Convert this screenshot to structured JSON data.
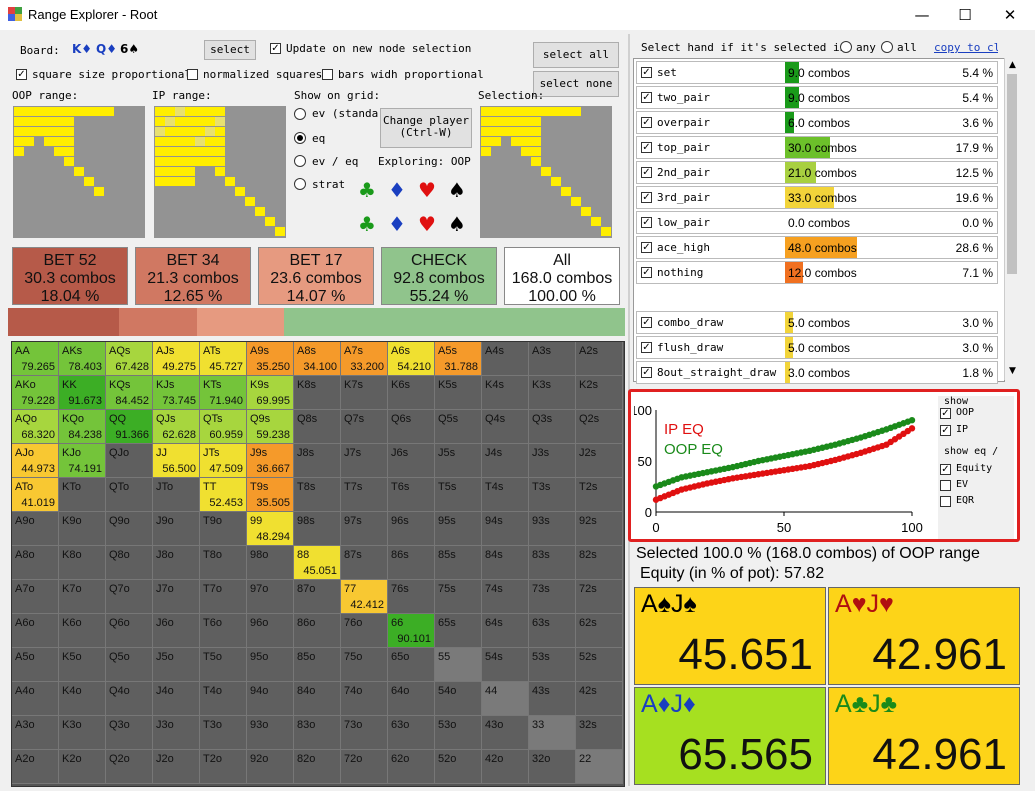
{
  "window": {
    "title": "Range Explorer  - Root",
    "minimize": "—",
    "maximize": "☐",
    "close": "✕"
  },
  "board": {
    "label": "Board:",
    "c1": "K♦",
    "c2": "Q♦",
    "c3": "6♠",
    "select_button": "select"
  },
  "options": {
    "update_label": "Update on new node selection",
    "square_size_label": "square size proportional",
    "normalized_label": "normalized squares",
    "bars_label": "bars widh proportional",
    "select_all": "select all",
    "select_none": "select none"
  },
  "thumbs": {
    "oop": "OOP range:",
    "ip": "IP range:",
    "selection": "Selection:"
  },
  "show_on_grid": {
    "label": "Show on grid:",
    "options": [
      "ev (standar",
      "eq",
      "ev / eq",
      "strat"
    ],
    "selected": 1
  },
  "change_player": {
    "line1": "Change player",
    "line2": "(Ctrl-W)"
  },
  "exploring": "Exploring: OOP",
  "suits": {
    "club": "♣",
    "diamond": "♦",
    "heart": "♥",
    "spade": "♠"
  },
  "actions": [
    {
      "name": "BET 52",
      "combos": "30.3 combos",
      "pct": "18.04 %",
      "color": "#b65a49"
    },
    {
      "name": "BET 34",
      "combos": "21.3 combos",
      "pct": "12.65 %",
      "color": "#d07862"
    },
    {
      "name": "BET 17",
      "combos": "23.6 combos",
      "pct": "14.07 %",
      "color": "#e69a80"
    },
    {
      "name": "CHECK",
      "combos": "92.8 combos",
      "pct": "55.24 %",
      "color": "#90c48c"
    },
    {
      "name": "All",
      "combos": "168.0 combos",
      "pct": "100.00 %",
      "color": "#ffffff"
    }
  ],
  "strategy_bar": [
    {
      "share": 0.1804,
      "color": "#b65a49"
    },
    {
      "share": 0.1265,
      "color": "#d07862"
    },
    {
      "share": 0.1407,
      "color": "#e69a80"
    },
    {
      "share": 0.5524,
      "color": "#90c48c"
    }
  ],
  "grid": [
    [
      {
        "n": "AA",
        "v": "79.265"
      },
      {
        "n": "AKs",
        "v": "78.403"
      },
      {
        "n": "AQs",
        "v": "67.428"
      },
      {
        "n": "AJs",
        "v": "49.275"
      },
      {
        "n": "ATs",
        "v": "45.727"
      },
      {
        "n": "A9s",
        "v": "35.250"
      },
      {
        "n": "A8s",
        "v": "34.100"
      },
      {
        "n": "A7s",
        "v": "33.200"
      },
      {
        "n": "A6s",
        "v": "54.210"
      },
      {
        "n": "A5s",
        "v": "31.788"
      },
      {
        "n": "A4s",
        "v": ""
      },
      {
        "n": "A3s",
        "v": ""
      },
      {
        "n": "A2s",
        "v": ""
      }
    ],
    [
      {
        "n": "AKo",
        "v": "79.228"
      },
      {
        "n": "KK",
        "v": "91.673"
      },
      {
        "n": "KQs",
        "v": "84.452"
      },
      {
        "n": "KJs",
        "v": "73.745"
      },
      {
        "n": "KTs",
        "v": "71.940"
      },
      {
        "n": "K9s",
        "v": "69.995"
      },
      {
        "n": "K8s",
        "v": ""
      },
      {
        "n": "K7s",
        "v": ""
      },
      {
        "n": "K6s",
        "v": ""
      },
      {
        "n": "K5s",
        "v": ""
      },
      {
        "n": "K4s",
        "v": ""
      },
      {
        "n": "K3s",
        "v": ""
      },
      {
        "n": "K2s",
        "v": ""
      }
    ],
    [
      {
        "n": "AQo",
        "v": "68.320"
      },
      {
        "n": "KQo",
        "v": "84.238"
      },
      {
        "n": "QQ",
        "v": "91.366"
      },
      {
        "n": "QJs",
        "v": "62.628"
      },
      {
        "n": "QTs",
        "v": "60.959"
      },
      {
        "n": "Q9s",
        "v": "59.238"
      },
      {
        "n": "Q8s",
        "v": ""
      },
      {
        "n": "Q7s",
        "v": ""
      },
      {
        "n": "Q6s",
        "v": ""
      },
      {
        "n": "Q5s",
        "v": ""
      },
      {
        "n": "Q4s",
        "v": ""
      },
      {
        "n": "Q3s",
        "v": ""
      },
      {
        "n": "Q2s",
        "v": ""
      }
    ],
    [
      {
        "n": "AJo",
        "v": "44.973"
      },
      {
        "n": "KJo",
        "v": "74.191"
      },
      {
        "n": "QJo",
        "v": ""
      },
      {
        "n": "JJ",
        "v": "56.500"
      },
      {
        "n": "JTs",
        "v": "47.509"
      },
      {
        "n": "J9s",
        "v": "36.667"
      },
      {
        "n": "J8s",
        "v": ""
      },
      {
        "n": "J7s",
        "v": ""
      },
      {
        "n": "J6s",
        "v": ""
      },
      {
        "n": "J5s",
        "v": ""
      },
      {
        "n": "J4s",
        "v": ""
      },
      {
        "n": "J3s",
        "v": ""
      },
      {
        "n": "J2s",
        "v": ""
      }
    ],
    [
      {
        "n": "ATo",
        "v": "41.019"
      },
      {
        "n": "KTo",
        "v": ""
      },
      {
        "n": "QTo",
        "v": ""
      },
      {
        "n": "JTo",
        "v": ""
      },
      {
        "n": "TT",
        "v": "52.453"
      },
      {
        "n": "T9s",
        "v": "35.505"
      },
      {
        "n": "T8s",
        "v": ""
      },
      {
        "n": "T7s",
        "v": ""
      },
      {
        "n": "T6s",
        "v": ""
      },
      {
        "n": "T5s",
        "v": ""
      },
      {
        "n": "T4s",
        "v": ""
      },
      {
        "n": "T3s",
        "v": ""
      },
      {
        "n": "T2s",
        "v": ""
      }
    ],
    [
      {
        "n": "A9o",
        "v": ""
      },
      {
        "n": "K9o",
        "v": ""
      },
      {
        "n": "Q9o",
        "v": ""
      },
      {
        "n": "J9o",
        "v": ""
      },
      {
        "n": "T9o",
        "v": ""
      },
      {
        "n": "99",
        "v": "48.294"
      },
      {
        "n": "98s",
        "v": ""
      },
      {
        "n": "97s",
        "v": ""
      },
      {
        "n": "96s",
        "v": ""
      },
      {
        "n": "95s",
        "v": ""
      },
      {
        "n": "94s",
        "v": ""
      },
      {
        "n": "93s",
        "v": ""
      },
      {
        "n": "92s",
        "v": ""
      }
    ],
    [
      {
        "n": "A8o",
        "v": ""
      },
      {
        "n": "K8o",
        "v": ""
      },
      {
        "n": "Q8o",
        "v": ""
      },
      {
        "n": "J8o",
        "v": ""
      },
      {
        "n": "T8o",
        "v": ""
      },
      {
        "n": "98o",
        "v": ""
      },
      {
        "n": "88",
        "v": "45.051"
      },
      {
        "n": "87s",
        "v": ""
      },
      {
        "n": "86s",
        "v": ""
      },
      {
        "n": "85s",
        "v": ""
      },
      {
        "n": "84s",
        "v": ""
      },
      {
        "n": "83s",
        "v": ""
      },
      {
        "n": "82s",
        "v": ""
      }
    ],
    [
      {
        "n": "A7o",
        "v": ""
      },
      {
        "n": "K7o",
        "v": ""
      },
      {
        "n": "Q7o",
        "v": ""
      },
      {
        "n": "J7o",
        "v": ""
      },
      {
        "n": "T7o",
        "v": ""
      },
      {
        "n": "97o",
        "v": ""
      },
      {
        "n": "87o",
        "v": ""
      },
      {
        "n": "77",
        "v": "42.412"
      },
      {
        "n": "76s",
        "v": ""
      },
      {
        "n": "75s",
        "v": ""
      },
      {
        "n": "74s",
        "v": ""
      },
      {
        "n": "73s",
        "v": ""
      },
      {
        "n": "72s",
        "v": ""
      }
    ],
    [
      {
        "n": "A6o",
        "v": ""
      },
      {
        "n": "K6o",
        "v": ""
      },
      {
        "n": "Q6o",
        "v": ""
      },
      {
        "n": "J6o",
        "v": ""
      },
      {
        "n": "T6o",
        "v": ""
      },
      {
        "n": "96o",
        "v": ""
      },
      {
        "n": "86o",
        "v": ""
      },
      {
        "n": "76o",
        "v": ""
      },
      {
        "n": "66",
        "v": "90.101"
      },
      {
        "n": "65s",
        "v": ""
      },
      {
        "n": "64s",
        "v": ""
      },
      {
        "n": "63s",
        "v": ""
      },
      {
        "n": "62s",
        "v": ""
      }
    ],
    [
      {
        "n": "A5o",
        "v": ""
      },
      {
        "n": "K5o",
        "v": ""
      },
      {
        "n": "Q5o",
        "v": ""
      },
      {
        "n": "J5o",
        "v": ""
      },
      {
        "n": "T5o",
        "v": ""
      },
      {
        "n": "95o",
        "v": ""
      },
      {
        "n": "85o",
        "v": ""
      },
      {
        "n": "75o",
        "v": ""
      },
      {
        "n": "65o",
        "v": ""
      },
      {
        "n": "55",
        "v": ""
      },
      {
        "n": "54s",
        "v": ""
      },
      {
        "n": "53s",
        "v": ""
      },
      {
        "n": "52s",
        "v": ""
      }
    ],
    [
      {
        "n": "A4o",
        "v": ""
      },
      {
        "n": "K4o",
        "v": ""
      },
      {
        "n": "Q4o",
        "v": ""
      },
      {
        "n": "J4o",
        "v": ""
      },
      {
        "n": "T4o",
        "v": ""
      },
      {
        "n": "94o",
        "v": ""
      },
      {
        "n": "84o",
        "v": ""
      },
      {
        "n": "74o",
        "v": ""
      },
      {
        "n": "64o",
        "v": ""
      },
      {
        "n": "54o",
        "v": ""
      },
      {
        "n": "44",
        "v": ""
      },
      {
        "n": "43s",
        "v": ""
      },
      {
        "n": "42s",
        "v": ""
      }
    ],
    [
      {
        "n": "A3o",
        "v": ""
      },
      {
        "n": "K3o",
        "v": ""
      },
      {
        "n": "Q3o",
        "v": ""
      },
      {
        "n": "J3o",
        "v": ""
      },
      {
        "n": "T3o",
        "v": ""
      },
      {
        "n": "93o",
        "v": ""
      },
      {
        "n": "83o",
        "v": ""
      },
      {
        "n": "73o",
        "v": ""
      },
      {
        "n": "63o",
        "v": ""
      },
      {
        "n": "53o",
        "v": ""
      },
      {
        "n": "43o",
        "v": ""
      },
      {
        "n": "33",
        "v": ""
      },
      {
        "n": "32s",
        "v": ""
      }
    ],
    [
      {
        "n": "A2o",
        "v": ""
      },
      {
        "n": "K2o",
        "v": ""
      },
      {
        "n": "Q2o",
        "v": ""
      },
      {
        "n": "J2o",
        "v": ""
      },
      {
        "n": "T2o",
        "v": ""
      },
      {
        "n": "92o",
        "v": ""
      },
      {
        "n": "82o",
        "v": ""
      },
      {
        "n": "72o",
        "v": ""
      },
      {
        "n": "62o",
        "v": ""
      },
      {
        "n": "52o",
        "v": ""
      },
      {
        "n": "42o",
        "v": ""
      },
      {
        "n": "32o",
        "v": ""
      },
      {
        "n": "22",
        "v": ""
      }
    ]
  ],
  "select_hand": {
    "label": "Select hand if it's selected in",
    "any": "any",
    "all": "all",
    "copy": "copy to cli"
  },
  "categories": [
    {
      "name": "set",
      "combos": "9.0 combos",
      "pct": "5.4 %",
      "color": "#1a9a1a",
      "share": 0.054
    },
    {
      "name": "two_pair",
      "combos": "9.0 combos",
      "pct": "5.4 %",
      "color": "#1a9a1a",
      "share": 0.054
    },
    {
      "name": "overpair",
      "combos": "6.0 combos",
      "pct": "3.6 %",
      "color": "#1a9a1a",
      "share": 0.036
    },
    {
      "name": "top_pair",
      "combos": "30.0 combos",
      "pct": "17.9 %",
      "color": "#6cc02a",
      "share": 0.179
    },
    {
      "name": "2nd_pair",
      "combos": "21.0 combos",
      "pct": "12.5 %",
      "color": "#a8d040",
      "share": 0.125
    },
    {
      "name": "3rd_pair",
      "combos": "33.0 combos",
      "pct": "19.6 %",
      "color": "#f2d43a",
      "share": 0.196
    },
    {
      "name": "low_pair",
      "combos": "0.0 combos",
      "pct": "0.0 %",
      "color": "#ffffff",
      "share": 0.0
    },
    {
      "name": "ace_high",
      "combos": "48.0 combos",
      "pct": "28.6 %",
      "color": "#f6a020",
      "share": 0.286
    },
    {
      "name": "nothing",
      "combos": "12.0 combos",
      "pct": "7.1 %",
      "color": "#f07020",
      "share": 0.071
    }
  ],
  "draws": [
    {
      "name": "combo_draw",
      "combos": "5.0 combos",
      "pct": "3.0 %",
      "color": "#f2d43a",
      "share": 0.03
    },
    {
      "name": "flush_draw",
      "combos": "5.0 combos",
      "pct": "3.0 %",
      "color": "#f2d43a",
      "share": 0.03
    },
    {
      "name": "8out_straight_draw",
      "combos": "3.0 combos",
      "pct": "1.8 %",
      "color": "#f2d43a",
      "share": 0.018
    }
  ],
  "show_panel": {
    "show": "show",
    "oop": "OOP",
    "ip": "IP",
    "show_eq": "show eq /",
    "equity": "Equity",
    "ev": "EV",
    "eqr": "EQR"
  },
  "chart_data": {
    "type": "scatter",
    "x": [
      0,
      10,
      20,
      30,
      40,
      50,
      60,
      70,
      80,
      90,
      100
    ],
    "series": [
      {
        "name": "IP EQ",
        "values": [
          12,
          22,
          28,
          33,
          37,
          41,
          45,
          51,
          58,
          66,
          82
        ]
      },
      {
        "name": "OOP EQ",
        "values": [
          25,
          34,
          39,
          44,
          50,
          55,
          60,
          66,
          73,
          81,
          90
        ]
      }
    ],
    "xlim": [
      0,
      100
    ],
    "ylim": [
      0,
      100
    ],
    "xticks": [
      "0",
      "50",
      "100"
    ],
    "yticks": [
      "0",
      "50",
      "100"
    ],
    "colors": {
      "IP EQ": "#e01010",
      "OOP EQ": "#1a8a1a"
    }
  },
  "summary": {
    "selected": "Selected 100.0 % (168.0 combos) of OOP range",
    "equity": "Equity (in % of pot): 57.82"
  },
  "hands": [
    {
      "r1": "A",
      "s1": "♠",
      "r2": "J",
      "s2": "♠",
      "value": "45.651",
      "bg": "#fdd418",
      "color": "#000000"
    },
    {
      "r1": "A",
      "s1": "♥",
      "r2": "J",
      "s2": "♥",
      "value": "42.961",
      "bg": "#fdd418",
      "color": "#b01010"
    },
    {
      "r1": "A",
      "s1": "♦",
      "r2": "J",
      "s2": "♦",
      "value": "65.565",
      "bg": "#a6e020",
      "color": "#1a3fc0"
    },
    {
      "r1": "A",
      "s1": "♣",
      "r2": "J",
      "s2": "♣",
      "value": "42.961",
      "bg": "#fdd418",
      "color": "#1a8a1a"
    }
  ]
}
